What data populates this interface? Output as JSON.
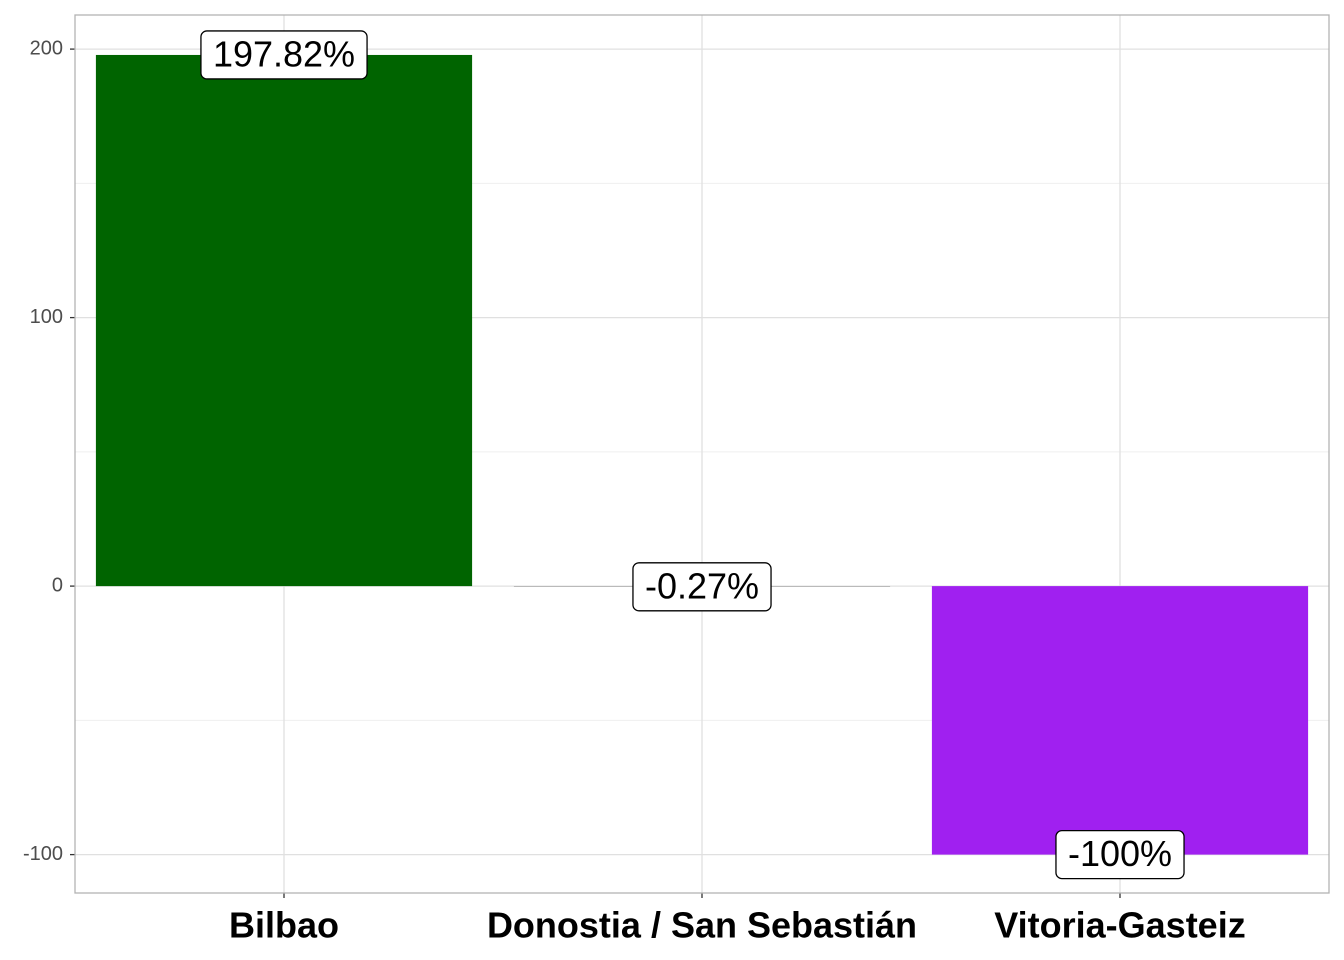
{
  "chart_data": {
    "type": "bar",
    "categories": [
      "Bilbao",
      "Donostia / San Sebastián",
      "Vitoria-Gasteiz"
    ],
    "values": [
      197.82,
      -0.27,
      -100
    ],
    "value_labels": [
      "197.82%",
      "-0.27%",
      "-100%"
    ],
    "colors": [
      "#006400",
      "#a9a9a9",
      "#a020f0"
    ],
    "ylim": [
      -114.3,
      212.7
    ],
    "yticks": [
      -100,
      0,
      100,
      200
    ],
    "yminor": [
      -50,
      50,
      150
    ],
    "grid": true
  }
}
